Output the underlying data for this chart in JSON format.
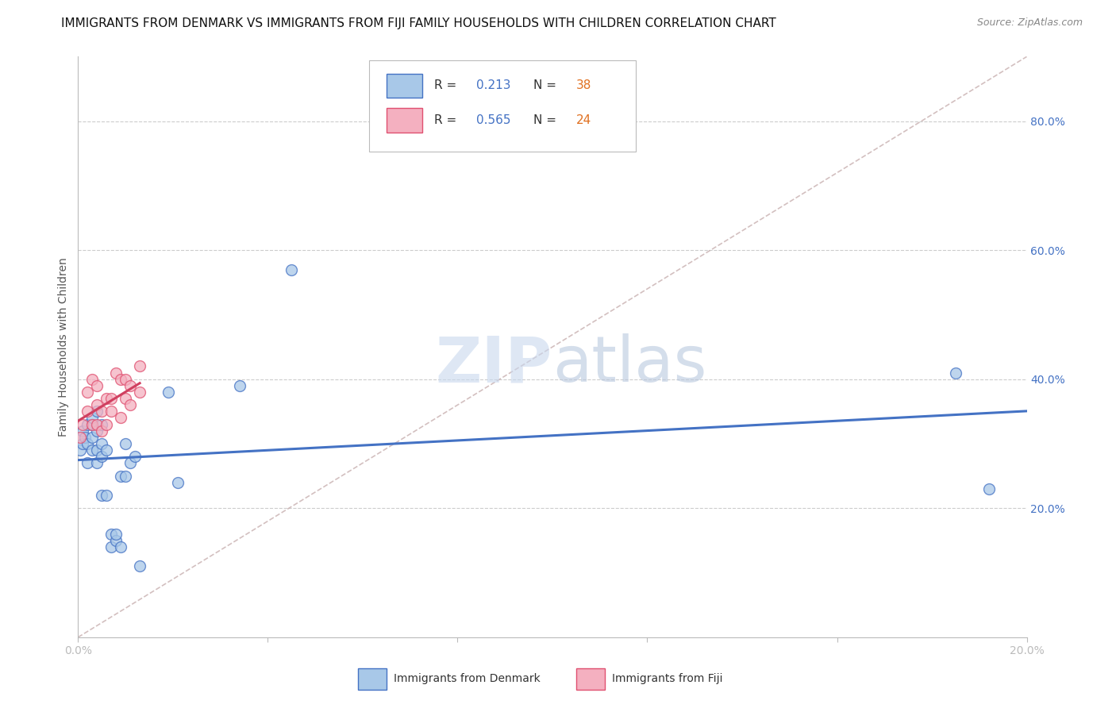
{
  "title": "IMMIGRANTS FROM DENMARK VS IMMIGRANTS FROM FIJI FAMILY HOUSEHOLDS WITH CHILDREN CORRELATION CHART",
  "source": "Source: ZipAtlas.com",
  "ylabel": "Family Households with Children",
  "legend_denmark": "Immigrants from Denmark",
  "legend_fiji": "Immigrants from Fiji",
  "legend_r_dk": "R = ",
  "legend_r_dk_val": "0.213",
  "legend_n_dk": "N = ",
  "legend_n_dk_val": "38",
  "legend_r_fj": "R = ",
  "legend_r_fj_val": "0.565",
  "legend_n_fj": "N = ",
  "legend_n_fj_val": "24",
  "color_denmark_fill": "#a8c8e8",
  "color_denmark_edge": "#4472c4",
  "color_fiji_fill": "#f4b0c0",
  "color_fiji_edge": "#e05070",
  "color_denmark_line": "#4472c4",
  "color_fiji_line": "#d04060",
  "color_diagonal": "#c8b0b0",
  "color_r_val": "#4472c4",
  "color_n_val": "#e07020",
  "background_color": "#ffffff",
  "xlim": [
    0.0,
    0.2
  ],
  "ylim": [
    0.0,
    0.9
  ],
  "ytick_vals": [
    0.2,
    0.4,
    0.6,
    0.8
  ],
  "xtick_vals": [
    0.0,
    0.04,
    0.08,
    0.12,
    0.16,
    0.2
  ],
  "denmark_x": [
    0.0005,
    0.001,
    0.001,
    0.0015,
    0.002,
    0.002,
    0.002,
    0.003,
    0.003,
    0.003,
    0.003,
    0.004,
    0.004,
    0.004,
    0.004,
    0.005,
    0.005,
    0.005,
    0.005,
    0.006,
    0.006,
    0.007,
    0.007,
    0.008,
    0.008,
    0.009,
    0.009,
    0.01,
    0.01,
    0.011,
    0.012,
    0.013,
    0.019,
    0.021,
    0.034,
    0.045,
    0.185,
    0.192
  ],
  "denmark_y": [
    0.29,
    0.3,
    0.32,
    0.31,
    0.27,
    0.3,
    0.33,
    0.29,
    0.31,
    0.33,
    0.34,
    0.27,
    0.29,
    0.32,
    0.35,
    0.22,
    0.28,
    0.3,
    0.33,
    0.22,
    0.29,
    0.14,
    0.16,
    0.15,
    0.16,
    0.14,
    0.25,
    0.25,
    0.3,
    0.27,
    0.28,
    0.11,
    0.38,
    0.24,
    0.39,
    0.57,
    0.41,
    0.23
  ],
  "fiji_x": [
    0.0005,
    0.001,
    0.002,
    0.002,
    0.003,
    0.003,
    0.004,
    0.004,
    0.004,
    0.005,
    0.005,
    0.006,
    0.006,
    0.007,
    0.007,
    0.008,
    0.009,
    0.009,
    0.01,
    0.01,
    0.011,
    0.011,
    0.013,
    0.013
  ],
  "fiji_y": [
    0.31,
    0.33,
    0.35,
    0.38,
    0.33,
    0.4,
    0.33,
    0.36,
    0.39,
    0.32,
    0.35,
    0.33,
    0.37,
    0.35,
    0.37,
    0.41,
    0.34,
    0.4,
    0.37,
    0.4,
    0.36,
    0.39,
    0.38,
    0.42
  ],
  "watermark_zip": "ZIP",
  "watermark_atlas": "atlas",
  "title_fontsize": 11,
  "source_fontsize": 9,
  "axis_label_fontsize": 10,
  "tick_fontsize": 10,
  "legend_fontsize": 11,
  "marker_size": 100
}
